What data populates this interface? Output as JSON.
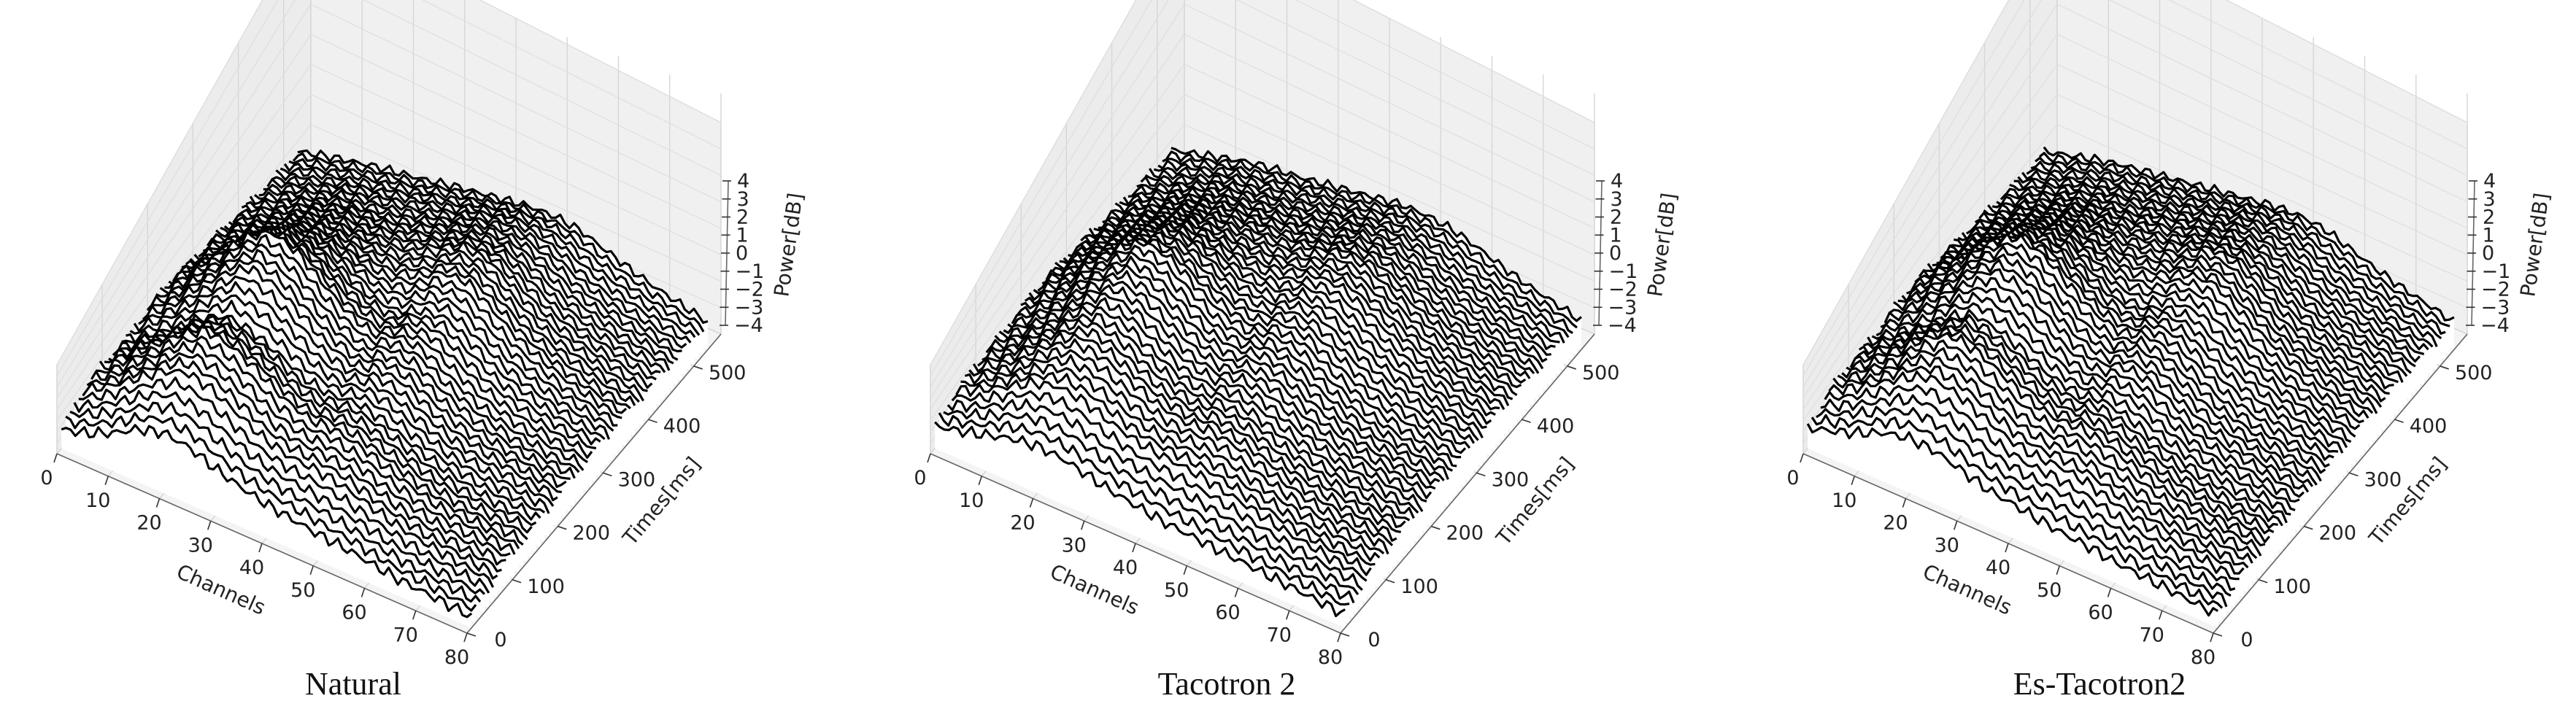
{
  "chart_data": [
    {
      "type": "line",
      "caption": "Natural",
      "xlabel": "Channels",
      "ylabel": "Times[ms]",
      "zlabel": "Power[dB]",
      "x_ticks": [
        0,
        10,
        20,
        30,
        40,
        50,
        60,
        70,
        80
      ],
      "y_ticks": [
        0,
        100,
        200,
        300,
        400,
        500
      ],
      "z_ticks": [
        -4,
        -3,
        -2,
        -1,
        0,
        1,
        2,
        3,
        4
      ],
      "xlim": [
        0,
        80
      ],
      "ylim": [
        0,
        560
      ],
      "zlim": [
        -4,
        4
      ],
      "grid": true,
      "series": [
        {
          "values": [
            -3.4,
            -3.0,
            -2.4,
            -1.6,
            -1.2,
            -1.4,
            -1.9,
            -2.3,
            -2.6,
            -2.8,
            -3.0,
            -3.1,
            -3.3,
            -3.5,
            -3.6,
            -3.7,
            -3.8
          ]
        },
        {
          "values": [
            -2.6,
            -1.8,
            -0.8,
            0.2,
            0.8,
            0.5,
            -0.2,
            -0.9,
            -1.3,
            -1.4,
            -1.6,
            -2.0,
            -2.4,
            -2.7,
            -2.9,
            -3.1,
            -3.3
          ]
        },
        {
          "values": [
            -2.4,
            -1.4,
            -0.2,
            1.0,
            1.8,
            1.5,
            0.8,
            -0.1,
            -0.6,
            -0.6,
            -0.9,
            -1.4,
            -1.9,
            -2.3,
            -2.6,
            -2.8,
            -3.0
          ]
        },
        {
          "values": [
            -2.5,
            -1.6,
            -0.6,
            0.6,
            1.3,
            1.0,
            0.4,
            -0.3,
            -0.6,
            -0.4,
            -0.7,
            -1.3,
            -1.8,
            -2.2,
            -2.5,
            -2.7,
            -2.9
          ]
        },
        {
          "values": [
            -2.2,
            -1.0,
            0.4,
            1.8,
            2.8,
            2.4,
            1.4,
            0.4,
            -0.2,
            0.2,
            0.0,
            -0.8,
            -1.5,
            -1.9,
            -2.2,
            -2.5,
            -2.7
          ]
        },
        {
          "values": [
            -2.0,
            -0.6,
            1.0,
            2.6,
            3.6,
            3.1,
            1.9,
            0.8,
            0.2,
            0.7,
            0.5,
            -0.4,
            -1.2,
            -1.7,
            -2.1,
            -2.4,
            -2.6
          ]
        },
        {
          "values": [
            -2.3,
            -1.1,
            0.3,
            1.6,
            2.3,
            2.0,
            1.2,
            0.4,
            0.2,
            0.9,
            1.1,
            0.2,
            -0.7,
            -1.3,
            -1.8,
            -2.2,
            -2.5
          ]
        },
        {
          "values": [
            -2.4,
            -1.4,
            -0.4,
            0.6,
            1.1,
            1.0,
            0.7,
            0.5,
            0.9,
            1.8,
            1.9,
            0.8,
            -0.3,
            -1.0,
            -1.6,
            -2.0,
            -2.4
          ]
        },
        {
          "values": [
            -2.6,
            -1.8,
            -1.0,
            -0.2,
            0.2,
            0.2,
            0.3,
            0.6,
            1.3,
            2.0,
            1.8,
            0.7,
            -0.4,
            -1.1,
            -1.6,
            -2.1,
            -2.5
          ]
        },
        {
          "values": [
            -2.8,
            -2.1,
            -1.5,
            -0.9,
            -0.6,
            -0.4,
            -0.1,
            0.4,
            1.0,
            1.4,
            1.2,
            0.4,
            -0.6,
            -1.2,
            -1.7,
            -2.1,
            -2.5
          ]
        },
        {
          "values": [
            -3.0,
            -2.4,
            -1.9,
            -1.4,
            -1.1,
            -0.8,
            -0.4,
            0.0,
            0.5,
            0.8,
            0.7,
            0.2,
            -0.7,
            -1.3,
            -1.8,
            -2.2,
            -2.6
          ]
        },
        {
          "values": [
            -3.1,
            -2.6,
            -2.2,
            -1.8,
            -1.5,
            -1.2,
            -0.8,
            -0.5,
            -0.2,
            0.1,
            0.2,
            0.0,
            -0.6,
            -1.2,
            -1.7,
            -2.1,
            -2.5
          ]
        }
      ]
    },
    {
      "type": "line",
      "caption": "Tacotron 2",
      "xlabel": "Channels",
      "ylabel": "Times[ms]",
      "zlabel": "Power[dB]",
      "x_ticks": [
        0,
        10,
        20,
        30,
        40,
        50,
        60,
        70,
        80
      ],
      "y_ticks": [
        0,
        100,
        200,
        300,
        400,
        500
      ],
      "z_ticks": [
        -4,
        -3,
        -2,
        -1,
        0,
        1,
        2,
        3,
        4
      ],
      "xlim": [
        0,
        80
      ],
      "ylim": [
        0,
        560
      ],
      "zlim": [
        -4,
        4
      ],
      "grid": true,
      "series": [
        {
          "values": [
            -3.2,
            -2.9,
            -2.5,
            -2.1,
            -1.9,
            -2.0,
            -2.3,
            -2.6,
            -2.8,
            -3.0,
            -3.1,
            -3.2,
            -3.3,
            -3.4,
            -3.5,
            -3.6,
            -3.7
          ]
        },
        {
          "values": [
            -2.6,
            -2.0,
            -1.2,
            -0.4,
            0.0,
            -0.2,
            -0.7,
            -1.1,
            -1.3,
            -1.4,
            -1.6,
            -1.9,
            -2.2,
            -2.5,
            -2.7,
            -2.9,
            -3.1
          ]
        },
        {
          "values": [
            -2.4,
            -1.6,
            -0.6,
            0.4,
            1.0,
            0.8,
            0.2,
            -0.4,
            -0.7,
            -0.6,
            -0.8,
            -1.3,
            -1.7,
            -2.1,
            -2.4,
            -2.6,
            -2.8
          ]
        },
        {
          "values": [
            -2.3,
            -1.4,
            -0.3,
            0.9,
            1.7,
            1.4,
            0.6,
            -0.1,
            -0.4,
            -0.2,
            -0.5,
            -1.0,
            -1.5,
            -1.9,
            -2.2,
            -2.5,
            -2.7
          ]
        },
        {
          "values": [
            -2.1,
            -1.1,
            0.2,
            1.5,
            2.4,
            2.1,
            1.2,
            0.4,
            0.0,
            0.3,
            0.1,
            -0.6,
            -1.2,
            -1.7,
            -2.0,
            -2.3,
            -2.6
          ]
        },
        {
          "values": [
            -2.0,
            -0.8,
            0.6,
            2.0,
            3.0,
            2.7,
            1.7,
            0.8,
            0.4,
            0.8,
            0.6,
            -0.2,
            -0.9,
            -1.5,
            -1.9,
            -2.2,
            -2.5
          ]
        },
        {
          "values": [
            -2.1,
            -1.0,
            0.3,
            1.6,
            2.4,
            2.2,
            1.5,
            0.9,
            0.7,
            1.2,
            1.1,
            0.3,
            -0.5,
            -1.1,
            -1.6,
            -2.0,
            -2.4
          ]
        },
        {
          "values": [
            -2.3,
            -1.3,
            -0.2,
            0.9,
            1.5,
            1.4,
            1.1,
            0.9,
            1.1,
            1.6,
            1.6,
            0.8,
            -0.1,
            -0.8,
            -1.4,
            -1.9,
            -2.3
          ]
        },
        {
          "values": [
            -2.5,
            -1.7,
            -0.8,
            0.1,
            0.6,
            0.7,
            0.7,
            0.8,
            1.2,
            1.7,
            1.6,
            0.8,
            -0.1,
            -0.8,
            -1.4,
            -1.9,
            -2.3
          ]
        },
        {
          "values": [
            -2.7,
            -2.0,
            -1.3,
            -0.6,
            -0.2,
            0.0,
            0.2,
            0.4,
            0.8,
            1.2,
            1.1,
            0.5,
            -0.3,
            -1.0,
            -1.5,
            -2.0,
            -2.4
          ]
        },
        {
          "values": [
            -2.9,
            -2.3,
            -1.7,
            -1.1,
            -0.8,
            -0.6,
            -0.3,
            0.0,
            0.3,
            0.6,
            0.6,
            0.2,
            -0.5,
            -1.1,
            -1.6,
            -2.0,
            -2.4
          ]
        },
        {
          "values": [
            -3.0,
            -2.5,
            -2.0,
            -1.5,
            -1.2,
            -1.0,
            -0.7,
            -0.4,
            -0.1,
            0.2,
            0.2,
            0.0,
            -0.5,
            -1.1,
            -1.6,
            -2.0,
            -2.4
          ]
        }
      ]
    },
    {
      "type": "line",
      "caption": "Es-Tacotron2",
      "xlabel": "Channels",
      "ylabel": "Times[ms]",
      "zlabel": "Power[dB]",
      "x_ticks": [
        0,
        10,
        20,
        30,
        40,
        50,
        60,
        70,
        80
      ],
      "y_ticks": [
        0,
        100,
        200,
        300,
        400,
        500
      ],
      "z_ticks": [
        -4,
        -3,
        -2,
        -1,
        0,
        1,
        2,
        3,
        4
      ],
      "xlim": [
        0,
        80
      ],
      "ylim": [
        0,
        560
      ],
      "zlim": [
        -4,
        4
      ],
      "grid": true,
      "series": [
        {
          "values": [
            -3.3,
            -2.9,
            -2.4,
            -1.8,
            -1.5,
            -1.6,
            -2.0,
            -2.4,
            -2.6,
            -2.8,
            -3.0,
            -3.1,
            -3.3,
            -3.4,
            -3.5,
            -3.6,
            -3.7
          ]
        },
        {
          "values": [
            -2.6,
            -1.9,
            -1.0,
            -0.1,
            0.5,
            0.2,
            -0.4,
            -1.0,
            -1.3,
            -1.3,
            -1.5,
            -1.9,
            -2.3,
            -2.6,
            -2.8,
            -3.0,
            -3.2
          ]
        },
        {
          "values": [
            -2.4,
            -1.5,
            -0.4,
            0.8,
            1.5,
            1.2,
            0.5,
            -0.2,
            -0.6,
            -0.5,
            -0.8,
            -1.3,
            -1.8,
            -2.2,
            -2.5,
            -2.7,
            -2.9
          ]
        },
        {
          "values": [
            -2.4,
            -1.5,
            -0.5,
            0.7,
            1.4,
            1.1,
            0.5,
            -0.2,
            -0.5,
            -0.3,
            -0.6,
            -1.2,
            -1.7,
            -2.1,
            -2.4,
            -2.6,
            -2.8
          ]
        },
        {
          "values": [
            -2.1,
            -1.0,
            0.3,
            1.7,
            2.6,
            2.3,
            1.3,
            0.4,
            -0.1,
            0.3,
            0.1,
            -0.7,
            -1.4,
            -1.8,
            -2.1,
            -2.4,
            -2.7
          ]
        },
        {
          "values": [
            -2.0,
            -0.7,
            0.8,
            2.3,
            3.3,
            2.9,
            1.8,
            0.8,
            0.3,
            0.8,
            0.5,
            -0.3,
            -1.1,
            -1.6,
            -2.0,
            -2.3,
            -2.6
          ]
        },
        {
          "values": [
            -2.2,
            -1.0,
            0.3,
            1.6,
            2.4,
            2.1,
            1.3,
            0.6,
            0.4,
            1.0,
            1.1,
            0.2,
            -0.6,
            -1.2,
            -1.7,
            -2.1,
            -2.5
          ]
        },
        {
          "values": [
            -2.4,
            -1.4,
            -0.3,
            0.7,
            1.3,
            1.2,
            0.9,
            0.7,
            1.0,
            1.7,
            1.8,
            0.8,
            -0.2,
            -0.9,
            -1.5,
            -2.0,
            -2.4
          ]
        },
        {
          "values": [
            -2.6,
            -1.8,
            -0.9,
            -0.1,
            0.4,
            0.5,
            0.5,
            0.7,
            1.2,
            1.9,
            1.7,
            0.7,
            -0.3,
            -1.0,
            -1.5,
            -2.0,
            -2.4
          ]
        },
        {
          "values": [
            -2.8,
            -2.1,
            -1.4,
            -0.8,
            -0.4,
            -0.2,
            0.1,
            0.4,
            0.9,
            1.3,
            1.1,
            0.4,
            -0.5,
            -1.1,
            -1.6,
            -2.0,
            -2.4
          ]
        },
        {
          "values": [
            -3.0,
            -2.4,
            -1.8,
            -1.3,
            -1.0,
            -0.7,
            -0.4,
            0.0,
            0.4,
            0.7,
            0.6,
            0.2,
            -0.6,
            -1.2,
            -1.7,
            -2.1,
            -2.5
          ]
        },
        {
          "values": [
            -3.1,
            -2.6,
            -2.1,
            -1.7,
            -1.4,
            -1.1,
            -0.8,
            -0.5,
            -0.2,
            0.1,
            0.2,
            0.0,
            -0.6,
            -1.2,
            -1.7,
            -2.1,
            -2.5
          ]
        }
      ]
    }
  ]
}
